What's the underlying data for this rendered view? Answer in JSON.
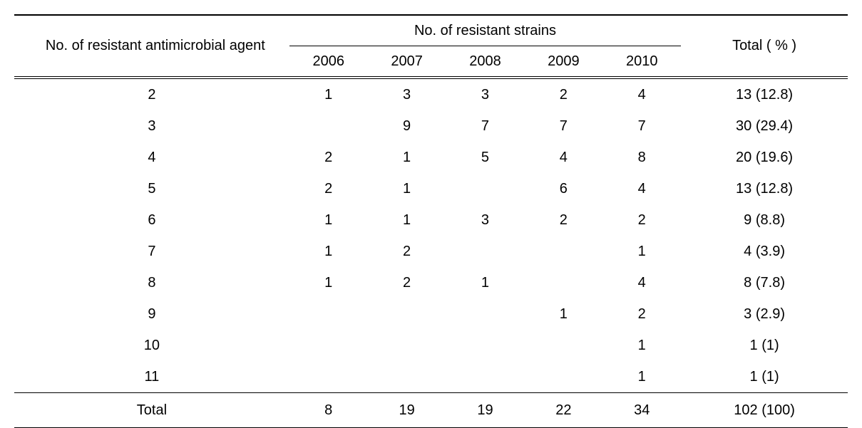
{
  "table": {
    "type": "table",
    "background_color": "#ffffff",
    "text_color": "#000000",
    "border_color": "#000000",
    "font_size_pt": 15,
    "header": {
      "agent_label": "No. of resistant antimicrobial agent",
      "strains_label": "No. of resistant strains",
      "total_label": "Total ( % )",
      "years": [
        "2006",
        "2007",
        "2008",
        "2009",
        "2010"
      ]
    },
    "rows": [
      {
        "agent": "2",
        "y2006": "1",
        "y2007": "3",
        "y2008": "3",
        "y2009": "2",
        "y2010": "4",
        "total": "13 (12.8)"
      },
      {
        "agent": "3",
        "y2006": "",
        "y2007": "9",
        "y2008": "7",
        "y2009": "7",
        "y2010": "7",
        "total": "30 (29.4)"
      },
      {
        "agent": "4",
        "y2006": "2",
        "y2007": "1",
        "y2008": "5",
        "y2009": "4",
        "y2010": "8",
        "total": "20 (19.6)"
      },
      {
        "agent": "5",
        "y2006": "2",
        "y2007": "1",
        "y2008": "",
        "y2009": "6",
        "y2010": "4",
        "total": "13 (12.8)"
      },
      {
        "agent": "6",
        "y2006": "1",
        "y2007": "1",
        "y2008": "3",
        "y2009": "2",
        "y2010": "2",
        "total": "9 (8.8)"
      },
      {
        "agent": "7",
        "y2006": "1",
        "y2007": "2",
        "y2008": "",
        "y2009": "",
        "y2010": "1",
        "total": "4 (3.9)"
      },
      {
        "agent": "8",
        "y2006": "1",
        "y2007": "2",
        "y2008": "1",
        "y2009": "",
        "y2010": "4",
        "total": "8 (7.8)"
      },
      {
        "agent": "9",
        "y2006": "",
        "y2007": "",
        "y2008": "",
        "y2009": "1",
        "y2010": "2",
        "total": "3 (2.9)"
      },
      {
        "agent": "10",
        "y2006": "",
        "y2007": "",
        "y2008": "",
        "y2009": "",
        "y2010": "1",
        "total": "1 (1)"
      },
      {
        "agent": "11",
        "y2006": "",
        "y2007": "",
        "y2008": "",
        "y2009": "",
        "y2010": "1",
        "total": "1 (1)"
      }
    ],
    "footer": {
      "label": "Total",
      "y2006": "8",
      "y2007": "19",
      "y2008": "19",
      "y2009": "22",
      "y2010": "34",
      "total": "102 (100)"
    }
  }
}
